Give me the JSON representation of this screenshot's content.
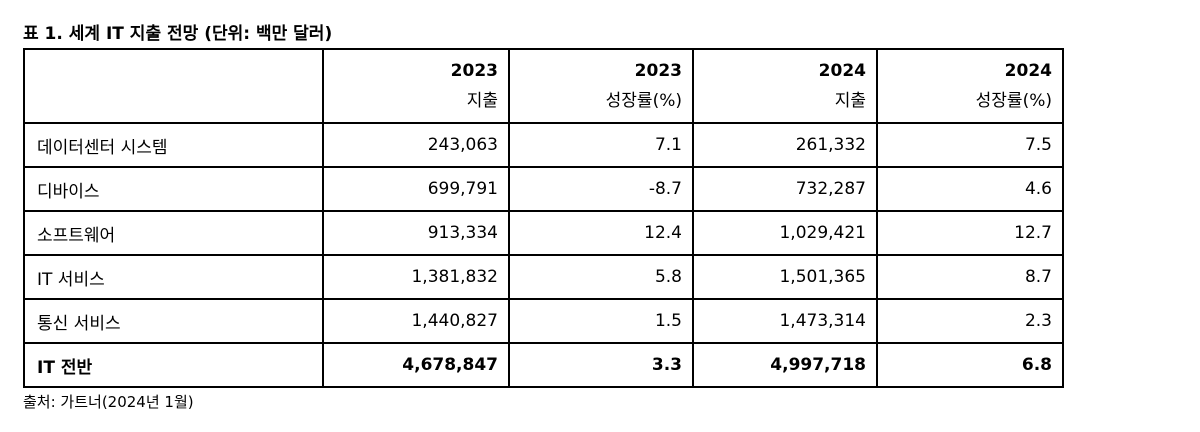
{
  "title": "표 1. 세계 IT 지출 전망 (단위: 백만 달러)",
  "table": {
    "columns": [
      {
        "year": "2023",
        "label": "지출"
      },
      {
        "year": "2023",
        "label": "성장률(%)"
      },
      {
        "year": "2024",
        "label": "지출"
      },
      {
        "year": "2024",
        "label": "성장률(%)"
      }
    ],
    "rows": [
      [
        "데이터센터 시스템",
        "243,063",
        "7.1",
        "261,332",
        "7.5"
      ],
      [
        "디바이스",
        "699,791",
        "-8.7",
        "732,287",
        "4.6"
      ],
      [
        "소프트웨어",
        "913,334",
        "12.4",
        "1,029,421",
        "12.7"
      ],
      [
        "IT 서비스",
        "1,381,832",
        "5.8",
        "1,501,365",
        "8.7"
      ],
      [
        "통신 서비스",
        "1,440,827",
        "1.5",
        "1,473,314",
        "2.3"
      ],
      [
        "IT 전반",
        "4,678,847",
        "3.3",
        "4,997,718",
        "6.8"
      ]
    ]
  },
  "source": "출처: 가트너(2024년 1월)"
}
